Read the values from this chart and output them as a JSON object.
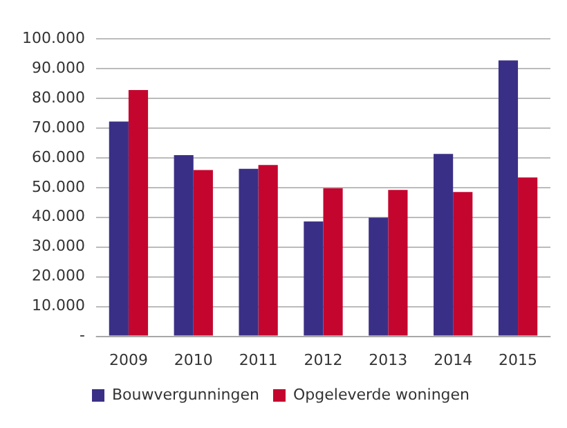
{
  "chart_data": {
    "type": "bar",
    "categories": [
      "2009",
      "2010",
      "2011",
      "2012",
      "2013",
      "2014",
      "2015"
    ],
    "series": [
      {
        "name": "Bouwvergunningen",
        "color": "#3a2f86",
        "values": [
          72200,
          60900,
          56300,
          38600,
          39900,
          61300,
          92700
        ]
      },
      {
        "name": "Opgeleverde woningen",
        "color": "#c4062f",
        "values": [
          82800,
          55900,
          57600,
          49800,
          49200,
          48500,
          53400
        ]
      }
    ],
    "ylim": [
      0,
      100000
    ],
    "yticks": [
      {
        "value": 0,
        "label": "-"
      },
      {
        "value": 10000,
        "label": "10.000"
      },
      {
        "value": 20000,
        "label": "20.000"
      },
      {
        "value": 30000,
        "label": "30.000"
      },
      {
        "value": 40000,
        "label": "40.000"
      },
      {
        "value": 50000,
        "label": "50.000"
      },
      {
        "value": 60000,
        "label": "60.000"
      },
      {
        "value": 70000,
        "label": "70.000"
      },
      {
        "value": 80000,
        "label": "80.000"
      },
      {
        "value": 90000,
        "label": "90.000"
      },
      {
        "value": 100000,
        "label": "100.000"
      }
    ],
    "grid": "y",
    "legend": "bottom"
  }
}
